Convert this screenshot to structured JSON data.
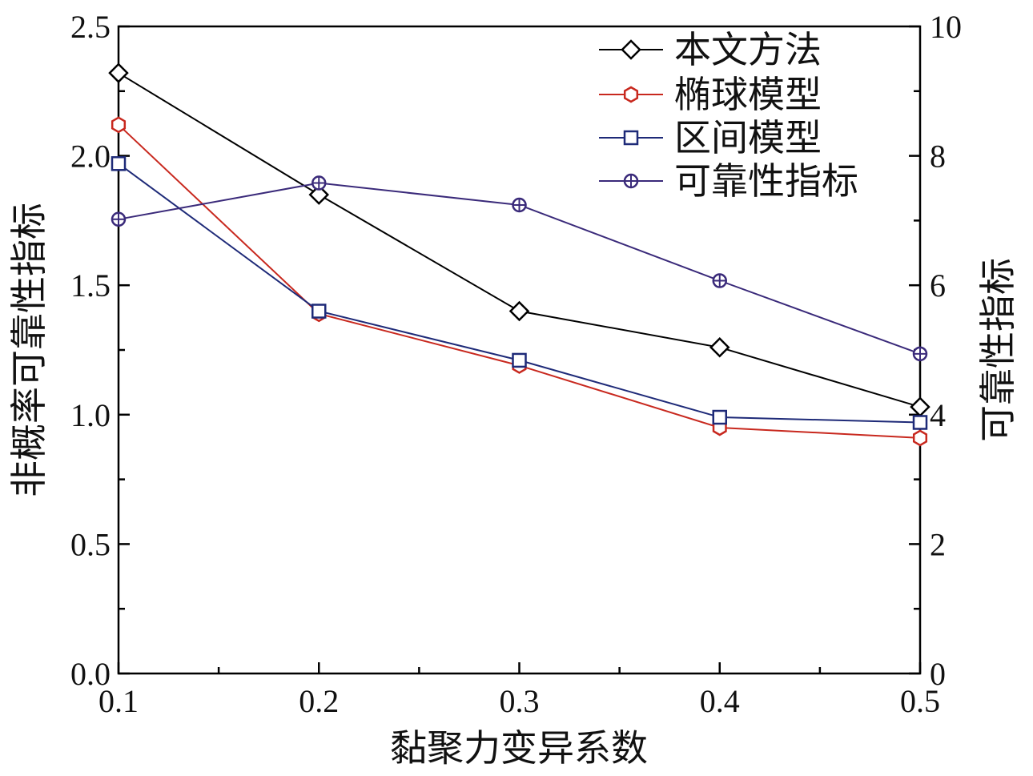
{
  "chart_data": {
    "type": "line",
    "xlabel": "黏聚力变异系数",
    "ylabel_left": "非概率可靠性指标",
    "ylabel_right": "可靠性指标",
    "x": [
      0.1,
      0.2,
      0.3,
      0.4,
      0.5
    ],
    "x_ticks": [
      "0.1",
      "0.2",
      "0.3",
      "0.4",
      "0.5"
    ],
    "xlim": [
      0.1,
      0.5
    ],
    "ylim_left": [
      0.0,
      2.5
    ],
    "left_ticks": [
      "0.0",
      "0.5",
      "1.0",
      "1.5",
      "2.0",
      "2.5"
    ],
    "ylim_right": [
      0,
      10
    ],
    "right_ticks": [
      "0",
      "2",
      "4",
      "6",
      "8",
      "10"
    ],
    "legend_position": "top-right",
    "grid": false,
    "series": [
      {
        "name": "本文方法",
        "axis": "left",
        "values": [
          2.32,
          1.85,
          1.4,
          1.26,
          1.03
        ],
        "color": "#000000",
        "marker": "diamond"
      },
      {
        "name": "椭球模型",
        "axis": "left",
        "values": [
          2.12,
          1.39,
          1.19,
          0.95,
          0.91
        ],
        "color": "#c8281e",
        "marker": "hexagon"
      },
      {
        "name": "区间模型",
        "axis": "left",
        "values": [
          1.97,
          1.4,
          1.21,
          0.99,
          0.97
        ],
        "color": "#1e2a78",
        "marker": "square"
      },
      {
        "name": "可靠性指标",
        "axis": "right",
        "values": [
          7.02,
          7.58,
          7.24,
          6.07,
          4.94
        ],
        "color": "#3a2a7a",
        "marker": "circle-plus"
      }
    ]
  }
}
